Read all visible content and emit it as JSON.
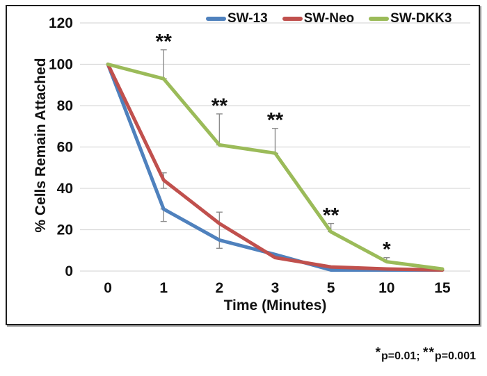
{
  "chart_data": {
    "type": "line",
    "categories": [
      "0",
      "1",
      "2",
      "3",
      "5",
      "10",
      "15"
    ],
    "x_axis_label": "Time (Minutes)",
    "y_axis_label": "% Cells Remain Attached",
    "ylim": [
      0,
      120
    ],
    "yticks": [
      0,
      20,
      40,
      60,
      80,
      100,
      120
    ],
    "grid": "horizontal",
    "legend_position": "top",
    "series": [
      {
        "name": "SW-13",
        "color": "#4F81BD",
        "values": [
          100,
          30,
          15,
          8,
          0.5,
          0.5,
          0.5
        ]
      },
      {
        "name": "SW-Neo",
        "color": "#C0504D",
        "values": [
          100,
          44,
          23,
          6.5,
          2,
          1,
          0.5
        ]
      },
      {
        "name": "SW-DKK3",
        "color": "#9BBB59",
        "values": [
          100,
          93,
          61,
          57,
          19,
          4.5,
          1
        ]
      }
    ],
    "error_bars": [
      {
        "series": "SW-13",
        "category_index": 1,
        "low": 24,
        "high": 30
      },
      {
        "series": "SW-Neo",
        "category_index": 1,
        "low": 40,
        "high": 47.5
      },
      {
        "series": "SW-Neo",
        "category_index": 2,
        "low": 11,
        "high": 28.5
      },
      {
        "series": "SW-DKK3",
        "category_index": 1,
        "low": 93,
        "high": 107
      },
      {
        "series": "SW-DKK3",
        "category_index": 2,
        "low": 61,
        "high": 76
      },
      {
        "series": "SW-DKK3",
        "category_index": 3,
        "low": 57,
        "high": 69
      },
      {
        "series": "SW-DKK3",
        "category_index": 4,
        "low": 19,
        "high": 23
      },
      {
        "series": "SW-DKK3",
        "category_index": 5,
        "low": 4.5,
        "high": 6.5
      }
    ],
    "annotations": [
      {
        "category_index": 1,
        "label": "**"
      },
      {
        "category_index": 2,
        "label": "**"
      },
      {
        "category_index": 3,
        "label": "**"
      },
      {
        "category_index": 4,
        "label": "**"
      },
      {
        "category_index": 5,
        "label": "*"
      }
    ],
    "significance_note": "*p=0.01; **p=0.001",
    "colors": {
      "gridline": "#D9D9D9",
      "error_bar": "#8C8C8C",
      "text": "#111111"
    }
  }
}
